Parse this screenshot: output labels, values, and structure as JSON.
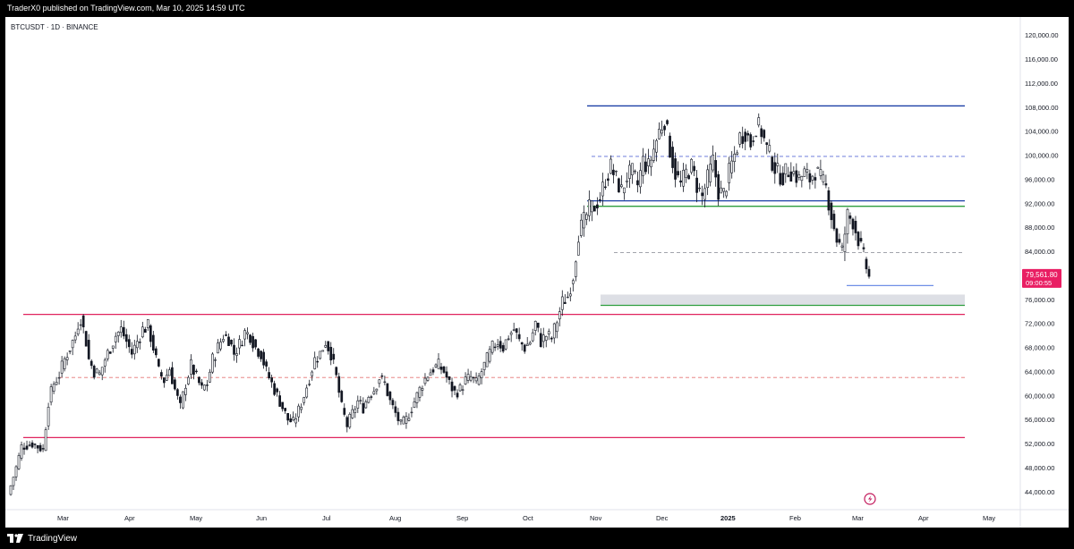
{
  "header": {
    "published_text": "TraderX0 published on TradingView.com, Mar 10, 2025 14:59 UTC"
  },
  "footer": {
    "brand": "TradingView",
    "logo_icon": "tradingview-logo-icon"
  },
  "chart_data": {
    "type": "candlestick",
    "symbol_label": "BTCUSDT · 1D · BINANCE",
    "price_axis": {
      "ylim": [
        42000,
        122000
      ],
      "ticks": [
        "44,000.00",
        "48,000.00",
        "52,000.00",
        "56,000.00",
        "60,000.00",
        "64,000.00",
        "68,000.00",
        "72,000.00",
        "76,000.00",
        "80,000.00",
        "84,000.00",
        "88,000.00",
        "92,000.00",
        "96,000.00",
        "100,000.00",
        "104,000.00",
        "108,000.00",
        "112,000.00",
        "116,000.00",
        "120,000.00"
      ]
    },
    "time_axis": {
      "labels": [
        "Mar",
        "Apr",
        "May",
        "Jun",
        "Jul",
        "Aug",
        "Sep",
        "Oct",
        "Nov",
        "Dec",
        "2025",
        "Feb",
        "Mar",
        "Apr",
        "May"
      ]
    },
    "current_price": {
      "value": 79561.8,
      "label": "79,561.80",
      "countdown": "09:00:55",
      "color": "#e91e63"
    },
    "levels": [
      {
        "kind": "solid",
        "price": 108200,
        "color": "#1a3fa6"
      },
      {
        "kind": "dashed",
        "price": 99800,
        "color": "#5b6bd6"
      },
      {
        "kind": "solid",
        "price": 92400,
        "color": "#1a3fa6"
      },
      {
        "kind": "solid",
        "price": 91500,
        "color": "#2e9e3e"
      },
      {
        "kind": "dashed",
        "price": 83800,
        "color": "#9598a1"
      },
      {
        "kind": "solid",
        "price": 78300,
        "color": "#6f8fe6"
      },
      {
        "kind": "zone",
        "price_low": 75000,
        "price_high": 76800,
        "color": "#d1d4dc"
      },
      {
        "kind": "solid",
        "price": 75000,
        "color": "#2e9e3e"
      },
      {
        "kind": "solid",
        "price": 73500,
        "color": "#e0245e"
      },
      {
        "kind": "dashed",
        "price": 63000,
        "color": "#e57373"
      },
      {
        "kind": "solid",
        "price": 53000,
        "color": "#e0245e"
      }
    ],
    "price_path": [
      [
        0,
        43500
      ],
      [
        3,
        48000
      ],
      [
        5,
        51500
      ],
      [
        9,
        52000
      ],
      [
        11,
        51500
      ],
      [
        13,
        51000
      ],
      [
        14,
        55000
      ],
      [
        15,
        59000
      ],
      [
        17,
        62000
      ],
      [
        19,
        63500
      ],
      [
        21,
        66000
      ],
      [
        23,
        68000
      ],
      [
        25,
        70000
      ],
      [
        26,
        72000
      ],
      [
        27,
        73000
      ],
      [
        28,
        71000
      ],
      [
        29,
        69000
      ],
      [
        30,
        66000
      ],
      [
        32,
        64000
      ],
      [
        34,
        63500
      ],
      [
        36,
        66000
      ],
      [
        38,
        68000
      ],
      [
        40,
        70000
      ],
      [
        42,
        71000
      ],
      [
        44,
        69000
      ],
      [
        46,
        67000
      ],
      [
        48,
        69000
      ],
      [
        50,
        71000
      ],
      [
        52,
        71500
      ],
      [
        54,
        68000
      ],
      [
        56,
        64000
      ],
      [
        58,
        62500
      ],
      [
        60,
        64500
      ],
      [
        62,
        61000
      ],
      [
        64,
        58000
      ],
      [
        66,
        62000
      ],
      [
        68,
        65000
      ],
      [
        70,
        63000
      ],
      [
        72,
        61000
      ],
      [
        74,
        62000
      ],
      [
        76,
        66000
      ],
      [
        78,
        68000
      ],
      [
        80,
        70000
      ],
      [
        82,
        69500
      ],
      [
        84,
        67000
      ],
      [
        86,
        68500
      ],
      [
        88,
        70500
      ],
      [
        90,
        70000
      ],
      [
        92,
        68000
      ],
      [
        94,
        67000
      ],
      [
        96,
        64000
      ],
      [
        98,
        62000
      ],
      [
        100,
        60000
      ],
      [
        102,
        58000
      ],
      [
        104,
        56000
      ],
      [
        106,
        55500
      ],
      [
        108,
        57500
      ],
      [
        110,
        60000
      ],
      [
        112,
        63000
      ],
      [
        114,
        66000
      ],
      [
        116,
        67000
      ],
      [
        118,
        69000
      ],
      [
        120,
        67000
      ],
      [
        122,
        63000
      ],
      [
        124,
        58000
      ],
      [
        126,
        55000
      ],
      [
        128,
        57000
      ],
      [
        130,
        59000
      ],
      [
        132,
        58000
      ],
      [
        134,
        60000
      ],
      [
        136,
        61000
      ],
      [
        138,
        63000
      ],
      [
        140,
        62000
      ],
      [
        142,
        59000
      ],
      [
        144,
        57000
      ],
      [
        146,
        55000
      ],
      [
        148,
        56000
      ],
      [
        150,
        58000
      ],
      [
        152,
        60000
      ],
      [
        154,
        62000
      ],
      [
        156,
        63500
      ],
      [
        158,
        64500
      ],
      [
        160,
        65000
      ],
      [
        162,
        64000
      ],
      [
        164,
        62000
      ],
      [
        166,
        60500
      ],
      [
        168,
        61000
      ],
      [
        170,
        62500
      ],
      [
        172,
        63000
      ],
      [
        174,
        62000
      ],
      [
        176,
        64000
      ],
      [
        178,
        66000
      ],
      [
        180,
        68000
      ],
      [
        182,
        69000
      ],
      [
        184,
        68000
      ],
      [
        186,
        70000
      ],
      [
        188,
        71000
      ],
      [
        190,
        69000
      ],
      [
        192,
        68000
      ],
      [
        194,
        69000
      ],
      [
        196,
        72000
      ],
      [
        198,
        69000
      ],
      [
        200,
        70000
      ],
      [
        202,
        69500
      ],
      [
        204,
        72500
      ],
      [
        206,
        75500
      ],
      [
        208,
        76500
      ],
      [
        210,
        80000
      ],
      [
        212,
        87000
      ],
      [
        214,
        89000
      ],
      [
        216,
        91000
      ],
      [
        218,
        91500
      ],
      [
        220,
        93000
      ],
      [
        222,
        96000
      ],
      [
        224,
        98000
      ],
      [
        226,
        96000
      ],
      [
        228,
        94000
      ],
      [
        230,
        96500
      ],
      [
        232,
        97000
      ],
      [
        234,
        95000
      ],
      [
        236,
        99000
      ],
      [
        238,
        98000
      ],
      [
        240,
        101000
      ],
      [
        242,
        104000
      ],
      [
        244,
        106000
      ],
      [
        246,
        101000
      ],
      [
        248,
        97000
      ],
      [
        250,
        95000
      ],
      [
        252,
        97000
      ],
      [
        254,
        98000
      ],
      [
        256,
        95000
      ],
      [
        258,
        93000
      ],
      [
        260,
        96000
      ],
      [
        262,
        99000
      ],
      [
        264,
        94000
      ],
      [
        266,
        93500
      ],
      [
        268,
        97000
      ],
      [
        270,
        100000
      ],
      [
        272,
        103000
      ],
      [
        274,
        104000
      ],
      [
        276,
        102000
      ],
      [
        278,
        105000
      ],
      [
        280,
        104000
      ],
      [
        282,
        101000
      ],
      [
        284,
        99000
      ],
      [
        286,
        97000
      ],
      [
        288,
        96500
      ],
      [
        290,
        97500
      ],
      [
        292,
        97000
      ],
      [
        294,
        96000
      ],
      [
        296,
        97000
      ],
      [
        298,
        96000
      ],
      [
        300,
        97500
      ],
      [
        302,
        96000
      ],
      [
        304,
        94500
      ],
      [
        306,
        90000
      ],
      [
        308,
        86000
      ],
      [
        310,
        84000
      ],
      [
        312,
        90000
      ],
      [
        314,
        89000
      ],
      [
        316,
        86000
      ],
      [
        318,
        83000
      ],
      [
        320,
        79600
      ]
    ]
  }
}
